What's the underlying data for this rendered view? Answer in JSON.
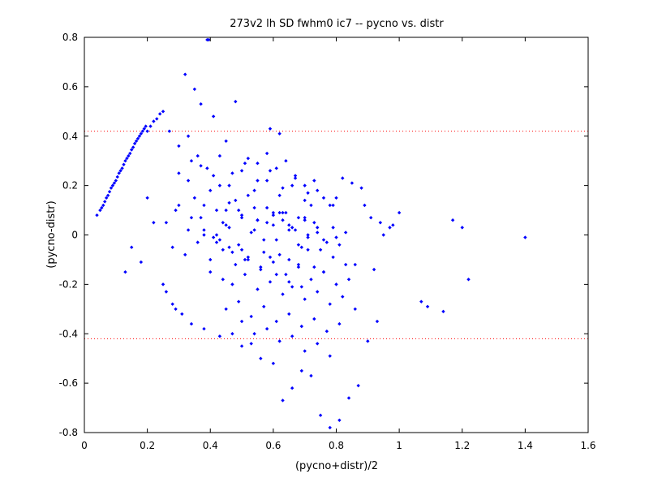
{
  "chart_data": {
    "type": "scatter",
    "title": "273v2 lh SD fwhm0 ic7 -- pycno vs. distr",
    "xlabel": "(pycno+distr)/2",
    "ylabel": "(pycno-distr)",
    "xlim": [
      0,
      1.6
    ],
    "ylim": [
      -0.8,
      0.8
    ],
    "xticks": [
      "0",
      "0.2",
      "0.4",
      "0.6",
      "0.8",
      "1",
      "1.2",
      "1.4",
      "1.6"
    ],
    "yticks": [
      "-0.8",
      "-0.6",
      "-0.4",
      "-0.2",
      "0",
      "0.2",
      "0.4",
      "0.6",
      "0.8"
    ],
    "grid": false,
    "reference_lines": [
      {
        "y": 0.42,
        "color": "#ff0000",
        "style": "dotted"
      },
      {
        "y": -0.42,
        "color": "#ff0000",
        "style": "dotted"
      }
    ],
    "series_color": "#0000ff",
    "series": [
      {
        "x": [
          0.04,
          0.05,
          0.055,
          0.06,
          0.065,
          0.07,
          0.075,
          0.08,
          0.085,
          0.09,
          0.095,
          0.1,
          0.105,
          0.11,
          0.115,
          0.12,
          0.125,
          0.13,
          0.135,
          0.14,
          0.145,
          0.15,
          0.155,
          0.16,
          0.165,
          0.17,
          0.175,
          0.18,
          0.185,
          0.19,
          0.195,
          0.2,
          0.21,
          0.22,
          0.23,
          0.24,
          0.25,
          0.39,
          0.395,
          0.32,
          0.35,
          0.37,
          0.48,
          0.41,
          0.59,
          0.62,
          0.27,
          0.3,
          0.33,
          0.36,
          0.45,
          0.52,
          0.55,
          0.58,
          0.61,
          0.64,
          0.67,
          0.7,
          0.73,
          0.76,
          0.79,
          0.82,
          0.85,
          0.88,
          0.91,
          0.94,
          0.97,
          1.0,
          1.17,
          1.2,
          1.4,
          1.22,
          1.14,
          1.07,
          1.09,
          0.98,
          0.95,
          0.13,
          0.15,
          0.18,
          0.2,
          0.22,
          0.25,
          0.26,
          0.28,
          0.29,
          0.31,
          0.34,
          0.38,
          0.43,
          0.47,
          0.5,
          0.53,
          0.56,
          0.6,
          0.63,
          0.66,
          0.69,
          0.72,
          0.75,
          0.78,
          0.81,
          0.84,
          0.87,
          0.9,
          0.93,
          0.42,
          0.44,
          0.46,
          0.49,
          0.51,
          0.54,
          0.57,
          0.6,
          0.62,
          0.65,
          0.68,
          0.7,
          0.71,
          0.74,
          0.77,
          0.8,
          0.83,
          0.86,
          0.89,
          0.92,
          0.35,
          0.38,
          0.4,
          0.43,
          0.45,
          0.48,
          0.5,
          0.52,
          0.55,
          0.58,
          0.6,
          0.63,
          0.65,
          0.68,
          0.71,
          0.73,
          0.76,
          0.79,
          0.81,
          0.4,
          0.44,
          0.47,
          0.51,
          0.55,
          0.59,
          0.63,
          0.66,
          0.7,
          0.74,
          0.78,
          0.82,
          0.86,
          0.3,
          0.33,
          0.37,
          0.41,
          0.46,
          0.5,
          0.54,
          0.58,
          0.62,
          0.66,
          0.7,
          0.74,
          0.78,
          0.28,
          0.32,
          0.36,
          0.4,
          0.44,
          0.48,
          0.52,
          0.56,
          0.6,
          0.64,
          0.68,
          0.72,
          0.76,
          0.8,
          0.34,
          0.39,
          0.43,
          0.47,
          0.51,
          0.55,
          0.59,
          0.63,
          0.67,
          0.71,
          0.45,
          0.49,
          0.53,
          0.57,
          0.61,
          0.65,
          0.69,
          0.73,
          0.77,
          0.81,
          0.42,
          0.46,
          0.5,
          0.54,
          0.58,
          0.62,
          0.66,
          0.7,
          0.74,
          0.5,
          0.54,
          0.58,
          0.62,
          0.66,
          0.7,
          0.74,
          0.78,
          0.6,
          0.63,
          0.67,
          0.71,
          0.75,
          0.79,
          0.83,
          0.3,
          0.34,
          0.38,
          0.43,
          0.47,
          0.52,
          0.56,
          0.61,
          0.65,
          0.69,
          0.38,
          0.42,
          0.46,
          0.5,
          0.55,
          0.59,
          0.64,
          0.68,
          0.72,
          0.76,
          0.8,
          0.84,
          0.26,
          0.29,
          0.33,
          0.37,
          0.41,
          0.45,
          0.49,
          0.53,
          0.57,
          0.61,
          0.65,
          0.69,
          0.73
        ],
        "y": [
          0.08,
          0.1,
          0.11,
          0.12,
          0.135,
          0.15,
          0.16,
          0.175,
          0.19,
          0.2,
          0.21,
          0.22,
          0.235,
          0.25,
          0.26,
          0.27,
          0.285,
          0.3,
          0.31,
          0.32,
          0.33,
          0.345,
          0.355,
          0.37,
          0.38,
          0.39,
          0.4,
          0.41,
          0.42,
          0.43,
          0.44,
          0.42,
          0.44,
          0.46,
          0.47,
          0.49,
          0.5,
          0.79,
          0.79,
          0.65,
          0.59,
          0.53,
          0.54,
          0.48,
          0.43,
          0.41,
          0.42,
          0.36,
          0.4,
          0.32,
          0.38,
          0.31,
          0.29,
          0.33,
          0.27,
          0.3,
          0.24,
          0.2,
          0.22,
          0.15,
          0.12,
          0.23,
          0.21,
          0.19,
          0.07,
          0.05,
          0.03,
          0.09,
          0.06,
          0.03,
          -0.01,
          -0.18,
          -0.31,
          -0.27,
          -0.29,
          0.04,
          0.0,
          -0.15,
          -0.05,
          -0.11,
          0.15,
          0.05,
          -0.2,
          -0.23,
          -0.28,
          -0.3,
          -0.32,
          -0.36,
          -0.38,
          -0.41,
          -0.4,
          -0.45,
          -0.44,
          -0.5,
          -0.52,
          -0.67,
          -0.62,
          -0.55,
          -0.57,
          -0.73,
          -0.78,
          -0.75,
          -0.66,
          -0.61,
          -0.43,
          -0.35,
          0.0,
          0.05,
          -0.05,
          0.1,
          -0.1,
          0.02,
          -0.02,
          0.08,
          -0.08,
          0.04,
          -0.04,
          0.06,
          -0.06,
          0.03,
          -0.03,
          -0.01,
          0.01,
          -0.12,
          0.12,
          -0.14,
          0.15,
          0.12,
          0.18,
          0.2,
          0.1,
          0.14,
          0.08,
          0.16,
          0.06,
          0.11,
          0.04,
          0.09,
          0.02,
          0.07,
          0.0,
          0.05,
          -0.02,
          0.03,
          -0.04,
          -0.15,
          -0.18,
          -0.2,
          -0.16,
          -0.22,
          -0.19,
          -0.24,
          -0.21,
          -0.26,
          -0.23,
          -0.28,
          -0.25,
          -0.3,
          0.25,
          0.22,
          0.28,
          0.24,
          0.2,
          0.26,
          0.18,
          0.22,
          0.16,
          0.2,
          0.14,
          0.18,
          0.12,
          -0.05,
          -0.08,
          -0.03,
          -0.1,
          -0.06,
          -0.12,
          -0.09,
          -0.14,
          -0.11,
          -0.16,
          -0.13,
          -0.18,
          -0.15,
          -0.2,
          0.3,
          0.27,
          0.32,
          0.25,
          0.29,
          0.22,
          0.26,
          0.19,
          0.23,
          0.17,
          -0.3,
          -0.27,
          -0.33,
          -0.29,
          -0.35,
          -0.32,
          -0.37,
          -0.34,
          -0.39,
          -0.36,
          0.1,
          0.13,
          0.07,
          0.11,
          0.05,
          0.09,
          0.03,
          0.07,
          0.01,
          -0.35,
          -0.4,
          -0.38,
          -0.43,
          -0.41,
          -0.47,
          -0.44,
          -0.49,
          0.09,
          0.06,
          0.02,
          -0.01,
          -0.06,
          -0.09,
          -0.12,
          0.12,
          0.07,
          0.02,
          -0.02,
          -0.07,
          -0.1,
          -0.13,
          -0.16,
          -0.19,
          -0.21,
          0.0,
          -0.03,
          0.03,
          -0.06,
          0.06,
          -0.09,
          0.09,
          -0.12,
          0.12,
          -0.15,
          0.15,
          -0.18,
          0.05,
          0.1,
          0.02,
          0.07,
          -0.01,
          0.04,
          -0.04,
          0.01,
          -0.07,
          -0.02,
          -0.1,
          -0.05,
          -0.13
        ]
      }
    ]
  }
}
